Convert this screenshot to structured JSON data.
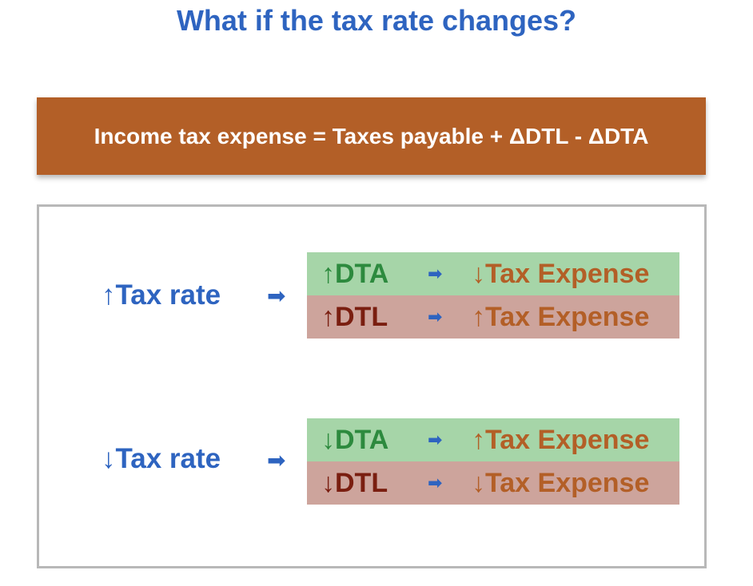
{
  "title": "What if the tax rate changes?",
  "formula": "Income tax expense = Taxes payable + ΔDTL - ΔDTA",
  "arrow_glyph": "➡",
  "scenarios": [
    {
      "rate_label": "↑Tax rate",
      "rows": [
        {
          "item": "↑DTA",
          "result": "↓Tax Expense"
        },
        {
          "item": "↑DTL",
          "result": "↑Tax Expense"
        }
      ]
    },
    {
      "rate_label": "↓Tax rate",
      "rows": [
        {
          "item": "↓DTA",
          "result": "↑Tax Expense"
        },
        {
          "item": "↓DTL",
          "result": "↓Tax Expense"
        }
      ]
    }
  ],
  "colors": {
    "title_blue": "#2e64c0",
    "formula_bg": "#b35f27",
    "dta_row_bg": "#a6d5a8",
    "dtl_row_bg": "#cda49c",
    "dta_text": "#2d8a3e",
    "dtl_text": "#7a1e10",
    "result_text": "#b35f27"
  }
}
